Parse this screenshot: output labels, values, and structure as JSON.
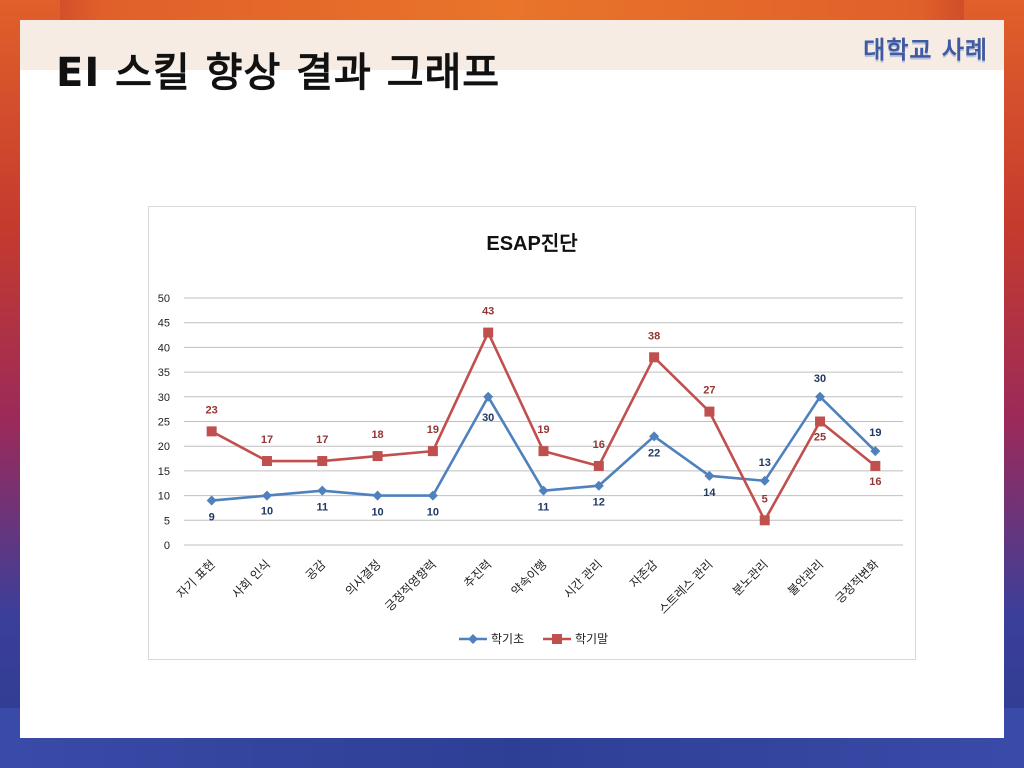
{
  "slide": {
    "title": "EI 스킬 향상 결과 그래프",
    "brand": "대학교 사례"
  },
  "colors": {
    "series_1": "#4f81bd",
    "series_2": "#c0504d",
    "gridline": "#bfbfbf",
    "axis_text": "#1f1f1f"
  },
  "chart_data": {
    "type": "line",
    "title": "ESAP진단",
    "categories": [
      "자기 표현",
      "사회 인식",
      "공감",
      "의사결정",
      "긍정적영향력",
      "추진력",
      "약속이행",
      "시간 관리",
      "자존감",
      "스트레스 관리",
      "분노관리",
      "불안관리",
      "긍정적변화"
    ],
    "series": [
      {
        "name": "학기초",
        "marker": "diamond",
        "values": [
          9,
          10,
          11,
          10,
          10,
          30,
          11,
          12,
          22,
          14,
          13,
          30,
          19
        ]
      },
      {
        "name": "학기말",
        "marker": "square",
        "values": [
          23,
          17,
          17,
          18,
          19,
          43,
          19,
          16,
          38,
          27,
          5,
          25,
          16
        ]
      }
    ],
    "ylim": [
      0,
      50
    ],
    "yticks": [
      0,
      5,
      10,
      15,
      20,
      25,
      30,
      35,
      40,
      45,
      50
    ],
    "grid": true,
    "legend_position": "bottom",
    "data_labels": true
  }
}
